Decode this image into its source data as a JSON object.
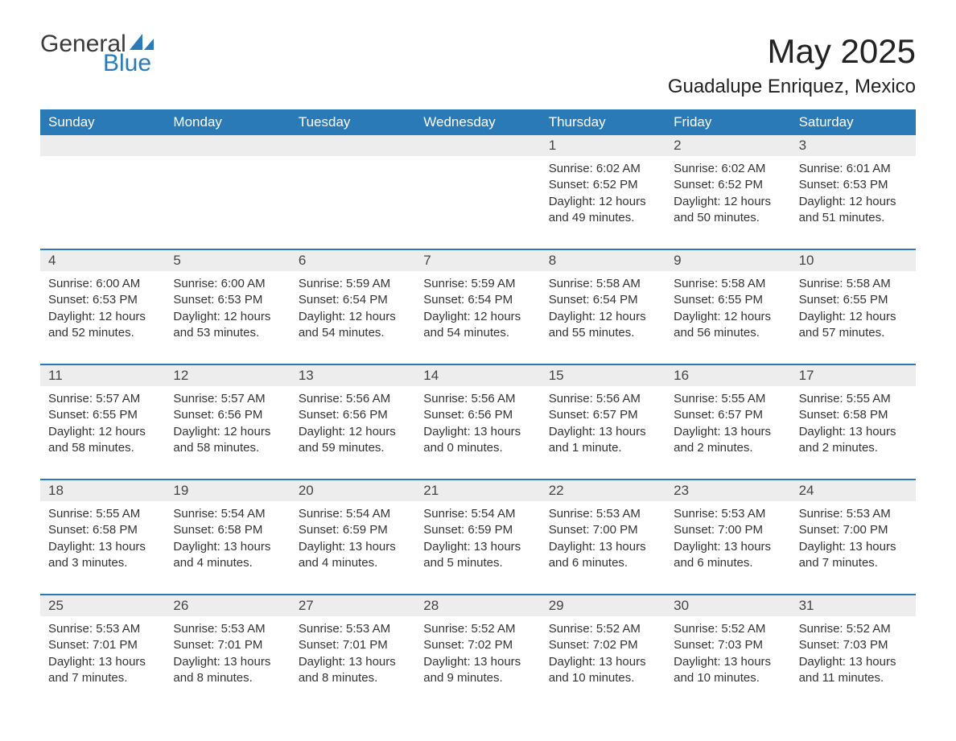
{
  "logo": {
    "general": "General",
    "blue": "Blue",
    "sail_color": "#2a7ab8"
  },
  "title": "May 2025",
  "location": "Guadalupe Enriquez, Mexico",
  "colors": {
    "header_bg": "#2a7ab8",
    "header_text": "#ffffff",
    "row_divider": "#2a7ab8",
    "daynum_bg": "#ededed",
    "text": "#333333",
    "page_bg": "#ffffff"
  },
  "weekdays": [
    "Sunday",
    "Monday",
    "Tuesday",
    "Wednesday",
    "Thursday",
    "Friday",
    "Saturday"
  ],
  "weeks": [
    [
      {
        "day": "",
        "sunrise": "",
        "sunset": "",
        "daylight": ""
      },
      {
        "day": "",
        "sunrise": "",
        "sunset": "",
        "daylight": ""
      },
      {
        "day": "",
        "sunrise": "",
        "sunset": "",
        "daylight": ""
      },
      {
        "day": "",
        "sunrise": "",
        "sunset": "",
        "daylight": ""
      },
      {
        "day": "1",
        "sunrise": "Sunrise: 6:02 AM",
        "sunset": "Sunset: 6:52 PM",
        "daylight": "Daylight: 12 hours and 49 minutes."
      },
      {
        "day": "2",
        "sunrise": "Sunrise: 6:02 AM",
        "sunset": "Sunset: 6:52 PM",
        "daylight": "Daylight: 12 hours and 50 minutes."
      },
      {
        "day": "3",
        "sunrise": "Sunrise: 6:01 AM",
        "sunset": "Sunset: 6:53 PM",
        "daylight": "Daylight: 12 hours and 51 minutes."
      }
    ],
    [
      {
        "day": "4",
        "sunrise": "Sunrise: 6:00 AM",
        "sunset": "Sunset: 6:53 PM",
        "daylight": "Daylight: 12 hours and 52 minutes."
      },
      {
        "day": "5",
        "sunrise": "Sunrise: 6:00 AM",
        "sunset": "Sunset: 6:53 PM",
        "daylight": "Daylight: 12 hours and 53 minutes."
      },
      {
        "day": "6",
        "sunrise": "Sunrise: 5:59 AM",
        "sunset": "Sunset: 6:54 PM",
        "daylight": "Daylight: 12 hours and 54 minutes."
      },
      {
        "day": "7",
        "sunrise": "Sunrise: 5:59 AM",
        "sunset": "Sunset: 6:54 PM",
        "daylight": "Daylight: 12 hours and 54 minutes."
      },
      {
        "day": "8",
        "sunrise": "Sunrise: 5:58 AM",
        "sunset": "Sunset: 6:54 PM",
        "daylight": "Daylight: 12 hours and 55 minutes."
      },
      {
        "day": "9",
        "sunrise": "Sunrise: 5:58 AM",
        "sunset": "Sunset: 6:55 PM",
        "daylight": "Daylight: 12 hours and 56 minutes."
      },
      {
        "day": "10",
        "sunrise": "Sunrise: 5:58 AM",
        "sunset": "Sunset: 6:55 PM",
        "daylight": "Daylight: 12 hours and 57 minutes."
      }
    ],
    [
      {
        "day": "11",
        "sunrise": "Sunrise: 5:57 AM",
        "sunset": "Sunset: 6:55 PM",
        "daylight": "Daylight: 12 hours and 58 minutes."
      },
      {
        "day": "12",
        "sunrise": "Sunrise: 5:57 AM",
        "sunset": "Sunset: 6:56 PM",
        "daylight": "Daylight: 12 hours and 58 minutes."
      },
      {
        "day": "13",
        "sunrise": "Sunrise: 5:56 AM",
        "sunset": "Sunset: 6:56 PM",
        "daylight": "Daylight: 12 hours and 59 minutes."
      },
      {
        "day": "14",
        "sunrise": "Sunrise: 5:56 AM",
        "sunset": "Sunset: 6:56 PM",
        "daylight": "Daylight: 13 hours and 0 minutes."
      },
      {
        "day": "15",
        "sunrise": "Sunrise: 5:56 AM",
        "sunset": "Sunset: 6:57 PM",
        "daylight": "Daylight: 13 hours and 1 minute."
      },
      {
        "day": "16",
        "sunrise": "Sunrise: 5:55 AM",
        "sunset": "Sunset: 6:57 PM",
        "daylight": "Daylight: 13 hours and 2 minutes."
      },
      {
        "day": "17",
        "sunrise": "Sunrise: 5:55 AM",
        "sunset": "Sunset: 6:58 PM",
        "daylight": "Daylight: 13 hours and 2 minutes."
      }
    ],
    [
      {
        "day": "18",
        "sunrise": "Sunrise: 5:55 AM",
        "sunset": "Sunset: 6:58 PM",
        "daylight": "Daylight: 13 hours and 3 minutes."
      },
      {
        "day": "19",
        "sunrise": "Sunrise: 5:54 AM",
        "sunset": "Sunset: 6:58 PM",
        "daylight": "Daylight: 13 hours and 4 minutes."
      },
      {
        "day": "20",
        "sunrise": "Sunrise: 5:54 AM",
        "sunset": "Sunset: 6:59 PM",
        "daylight": "Daylight: 13 hours and 4 minutes."
      },
      {
        "day": "21",
        "sunrise": "Sunrise: 5:54 AM",
        "sunset": "Sunset: 6:59 PM",
        "daylight": "Daylight: 13 hours and 5 minutes."
      },
      {
        "day": "22",
        "sunrise": "Sunrise: 5:53 AM",
        "sunset": "Sunset: 7:00 PM",
        "daylight": "Daylight: 13 hours and 6 minutes."
      },
      {
        "day": "23",
        "sunrise": "Sunrise: 5:53 AM",
        "sunset": "Sunset: 7:00 PM",
        "daylight": "Daylight: 13 hours and 6 minutes."
      },
      {
        "day": "24",
        "sunrise": "Sunrise: 5:53 AM",
        "sunset": "Sunset: 7:00 PM",
        "daylight": "Daylight: 13 hours and 7 minutes."
      }
    ],
    [
      {
        "day": "25",
        "sunrise": "Sunrise: 5:53 AM",
        "sunset": "Sunset: 7:01 PM",
        "daylight": "Daylight: 13 hours and 7 minutes."
      },
      {
        "day": "26",
        "sunrise": "Sunrise: 5:53 AM",
        "sunset": "Sunset: 7:01 PM",
        "daylight": "Daylight: 13 hours and 8 minutes."
      },
      {
        "day": "27",
        "sunrise": "Sunrise: 5:53 AM",
        "sunset": "Sunset: 7:01 PM",
        "daylight": "Daylight: 13 hours and 8 minutes."
      },
      {
        "day": "28",
        "sunrise": "Sunrise: 5:52 AM",
        "sunset": "Sunset: 7:02 PM",
        "daylight": "Daylight: 13 hours and 9 minutes."
      },
      {
        "day": "29",
        "sunrise": "Sunrise: 5:52 AM",
        "sunset": "Sunset: 7:02 PM",
        "daylight": "Daylight: 13 hours and 10 minutes."
      },
      {
        "day": "30",
        "sunrise": "Sunrise: 5:52 AM",
        "sunset": "Sunset: 7:03 PM",
        "daylight": "Daylight: 13 hours and 10 minutes."
      },
      {
        "day": "31",
        "sunrise": "Sunrise: 5:52 AM",
        "sunset": "Sunset: 7:03 PM",
        "daylight": "Daylight: 13 hours and 11 minutes."
      }
    ]
  ]
}
